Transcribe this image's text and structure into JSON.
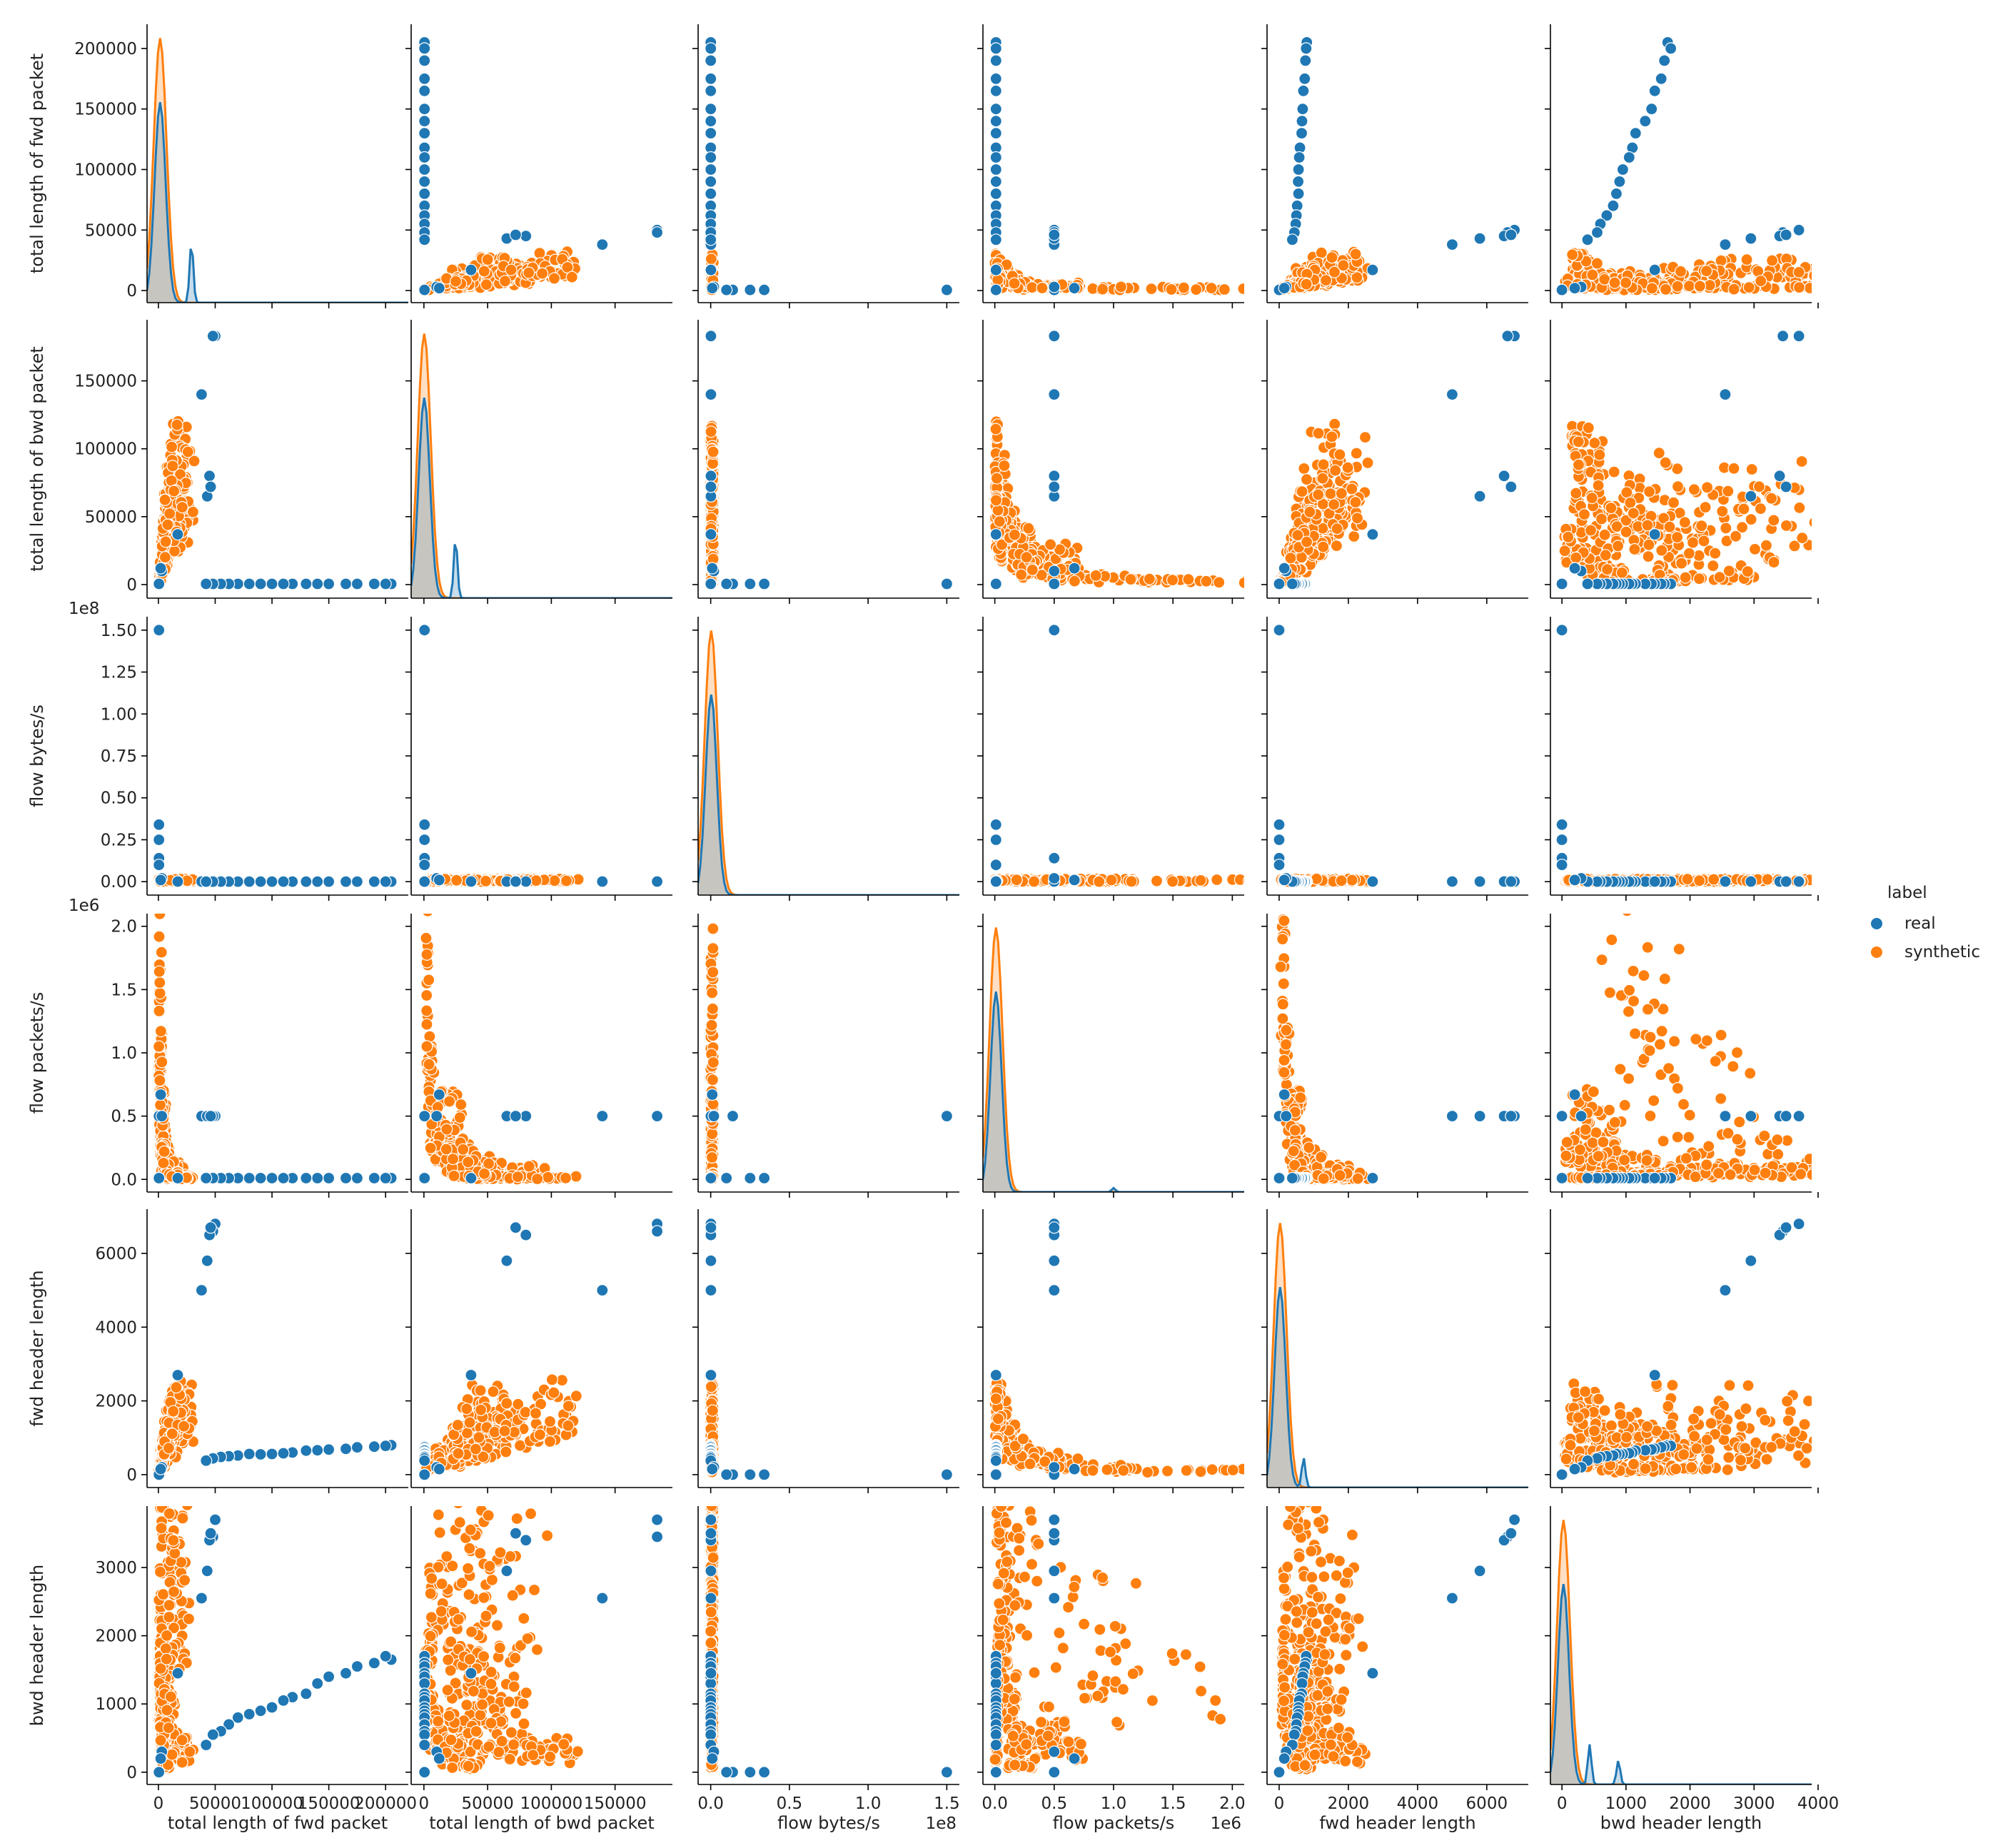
{
  "chart_data": {
    "type": "scatter",
    "subtype": "pairplot",
    "variables": [
      {
        "name": "total length of fwd packet",
        "range": [
          -10000,
          220000
        ],
        "ticks": [
          0,
          50000,
          100000,
          150000,
          200000
        ],
        "tick_labels": [
          "0",
          "50000",
          "100000",
          "150000",
          "200000"
        ],
        "y_tick_labels": [
          "0",
          "50000",
          "100000",
          "150000",
          "200000"
        ],
        "offset": ""
      },
      {
        "name": "total length of bwd packet",
        "range": [
          -10000,
          195000
        ],
        "ticks": [
          0,
          50000,
          100000,
          150000
        ],
        "tick_labels": [
          "0",
          "50000",
          "100000",
          "150000"
        ],
        "y_tick_labels": [
          "0",
          "50000",
          "100000",
          "150000"
        ],
        "offset": ""
      },
      {
        "name": "flow bytes/s",
        "range": [
          -0.08,
          1.58
        ],
        "ticks": [
          0,
          0.5,
          1.0,
          1.5
        ],
        "tick_labels": [
          "0.0",
          "0.5",
          "1.0",
          "1.5"
        ],
        "y_ticks": [
          0,
          0.25,
          0.5,
          0.75,
          1.0,
          1.25,
          1.5
        ],
        "y_tick_labels": [
          "0.00",
          "0.25",
          "0.50",
          "0.75",
          "1.00",
          "1.25",
          "1.50"
        ],
        "offset": "1e8"
      },
      {
        "name": "flow packets/s",
        "range": [
          -0.1,
          2.1
        ],
        "ticks": [
          0,
          0.5,
          1.0,
          1.5,
          2.0
        ],
        "tick_labels": [
          "0.0",
          "0.5",
          "1.0",
          "1.5",
          "2.0"
        ],
        "y_tick_labels": [
          "0.0",
          "0.5",
          "1.0",
          "1.5",
          "2.0"
        ],
        "offset": "1e6"
      },
      {
        "name": "fwd header length",
        "range": [
          -350,
          7200
        ],
        "ticks": [
          0,
          2000,
          4000,
          6000
        ],
        "tick_labels": [
          "0",
          "2000",
          "4000",
          "6000"
        ],
        "y_tick_labels": [
          "0",
          "2000",
          "4000",
          "6000"
        ],
        "offset": ""
      },
      {
        "name": "bwd header length",
        "range": [
          -180,
          3900
        ],
        "ticks": [
          0,
          1000,
          2000,
          3000,
          4000
        ],
        "tick_labels": [
          "0",
          "1000",
          "2000",
          "3000",
          "4000"
        ],
        "y_ticks": [
          0,
          1000,
          2000,
          3000
        ],
        "y_tick_labels": [
          "0",
          "1000",
          "2000",
          "3000"
        ],
        "offset": ""
      }
    ],
    "series": [
      {
        "name": "real",
        "color": "#1f77b4",
        "points": [
          [
            38000,
            140000,
            0.001,
            0.5,
            5000,
            2550
          ],
          [
            50000,
            183000,
            0.001,
            0.5,
            6800,
            3700
          ],
          [
            48000,
            183000,
            0.001,
            0.5,
            6600,
            3450
          ],
          [
            45000,
            80000,
            0.001,
            0.5,
            6500,
            3400
          ],
          [
            43000,
            65000,
            0.001,
            0.5,
            5800,
            2950
          ],
          [
            46000,
            72000,
            0.001,
            0.5,
            6700,
            3500
          ],
          [
            205000,
            500,
            0.0005,
            0.01,
            800,
            1650
          ],
          [
            200000,
            500,
            0.0005,
            0.01,
            780,
            1700
          ],
          [
            190000,
            500,
            0.0005,
            0.01,
            760,
            1600
          ],
          [
            175000,
            500,
            0.0005,
            0.01,
            740,
            1550
          ],
          [
            165000,
            500,
            0.0005,
            0.01,
            700,
            1450
          ],
          [
            150000,
            500,
            0.0005,
            0.01,
            680,
            1400
          ],
          [
            140000,
            500,
            0.0005,
            0.01,
            660,
            1300
          ],
          [
            130000,
            500,
            0.0005,
            0.01,
            650,
            1150
          ],
          [
            118000,
            500,
            0.0005,
            0.01,
            600,
            1100
          ],
          [
            110000,
            500,
            0.0005,
            0.01,
            580,
            1050
          ],
          [
            100000,
            500,
            0.0005,
            0.01,
            560,
            950
          ],
          [
            90000,
            500,
            0.0005,
            0.01,
            550,
            900
          ],
          [
            80000,
            500,
            0.0005,
            0.01,
            560,
            850
          ],
          [
            70000,
            500,
            0.0005,
            0.01,
            520,
            800
          ],
          [
            62000,
            500,
            0.0005,
            0.01,
            500,
            700
          ],
          [
            55000,
            500,
            0.0005,
            0.01,
            480,
            600
          ],
          [
            48000,
            500,
            0.0005,
            0.01,
            440,
            550
          ],
          [
            42000,
            500,
            0.0005,
            0.01,
            380,
            400
          ],
          [
            17000,
            37000,
            0.001,
            0.01,
            2700,
            1450
          ],
          [
            500,
            500,
            1.5,
            0.5,
            0,
            0
          ],
          [
            500,
            500,
            0.34,
            0.01,
            0,
            0
          ],
          [
            500,
            500,
            0.25,
            0.01,
            0,
            0
          ],
          [
            500,
            500,
            0.14,
            0.5,
            0,
            0
          ],
          [
            500,
            500,
            0.1,
            0.01,
            0,
            0
          ],
          [
            3000,
            10000,
            0.02,
            0.5,
            200,
            300
          ],
          [
            2000,
            12000,
            0.01,
            0.67,
            150,
            200
          ]
        ]
      },
      {
        "name": "synthetic",
        "color": "#ff7f0e",
        "points": [
          [
            5000,
            40000,
            0,
            0.05,
            900,
            2000
          ],
          [
            8000,
            60000,
            0,
            0.02,
            1200,
            1500
          ],
          [
            12000,
            75000,
            0,
            0.01,
            1500,
            1000
          ],
          [
            20000,
            95000,
            0,
            0.005,
            1900,
            500
          ],
          [
            25000,
            100000,
            0,
            0.002,
            2100,
            300
          ],
          [
            15000,
            50000,
            0,
            0.1,
            1000,
            3700
          ],
          [
            3000,
            20000,
            0,
            0.3,
            600,
            3500
          ],
          [
            1000,
            5000,
            0,
            1.0,
            200,
            2500
          ],
          [
            500,
            2000,
            0,
            2.0,
            100,
            1500
          ],
          [
            2000,
            10000,
            0,
            0.5,
            400,
            800
          ],
          [
            6000,
            30000,
            0,
            0.2,
            700,
            600
          ],
          [
            10000,
            45000,
            0,
            0.15,
            1100,
            1200
          ],
          [
            18000,
            80000,
            0,
            0.08,
            1700,
            3200
          ],
          [
            22000,
            60000,
            0,
            0.03,
            2000,
            3600
          ],
          [
            4000,
            25000,
            0,
            0.6,
            500,
            400
          ],
          [
            7000,
            35000,
            0,
            0.25,
            800,
            100
          ]
        ]
      }
    ],
    "legend": {
      "title": "label",
      "entries": [
        "real",
        "synthetic"
      ],
      "placement": "right"
    }
  }
}
